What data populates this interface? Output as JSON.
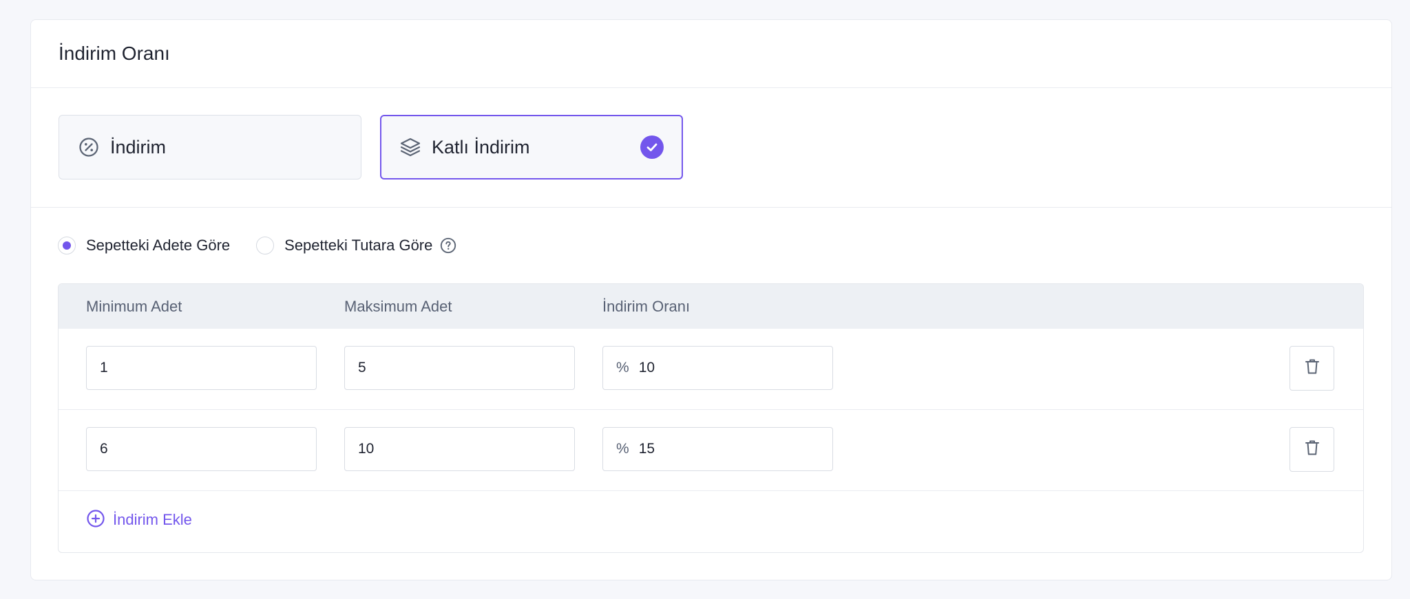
{
  "card": {
    "title": "İndirim Oranı"
  },
  "discount_types": [
    {
      "label": "İndirim",
      "icon": "percent-badge-icon",
      "selected": false
    },
    {
      "label": "Katlı İndirim",
      "icon": "layers-icon",
      "selected": true
    }
  ],
  "basis": {
    "options": [
      {
        "label": "Sepetteki Adete Göre",
        "selected": true
      },
      {
        "label": "Sepetteki Tutara Göre",
        "selected": false
      }
    ],
    "help_icon": "question-circle-icon"
  },
  "table": {
    "columns": [
      "Minimum Adet",
      "Maksimum Adet",
      "İndirim Oranı"
    ],
    "percent_prefix": "%",
    "rows": [
      {
        "min": "1",
        "max": "5",
        "rate": "10"
      },
      {
        "min": "6",
        "max": "10",
        "rate": "15"
      }
    ],
    "delete_icon": "trash-icon"
  },
  "add_button": {
    "label": "İndirim Ekle",
    "icon": "plus-circle-icon"
  },
  "colors": {
    "accent": "#7356ec",
    "header_bg": "#edf0f4",
    "page_bg": "#f6f7fb"
  }
}
